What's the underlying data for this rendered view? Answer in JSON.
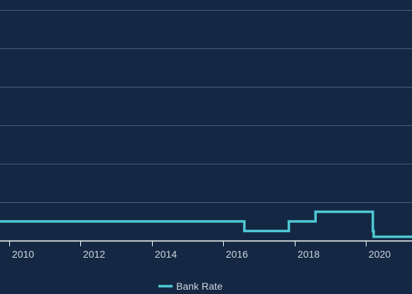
{
  "chart_data": {
    "type": "line",
    "x_axis": {
      "type": "date",
      "range": [
        "2009-10-01",
        "2021-04-15"
      ],
      "ticks": [
        "2010",
        "2012",
        "2014",
        "2016",
        "2018",
        "2020"
      ]
    },
    "y_axis": {
      "range": [
        0,
        6
      ],
      "gridlines": [
        1,
        2,
        3,
        4,
        5,
        6
      ],
      "tick_labels_visible": false
    },
    "grid": true,
    "legend_position": "bottom",
    "colors": {
      "background": "#142843",
      "gridline": "#4d5f78",
      "axis": "#ffffff",
      "series": "#4fc8d4",
      "text": "#cfd6e0"
    },
    "series": [
      {
        "name": "Bank Rate",
        "color": "#4fc8d4",
        "step": true,
        "points": [
          {
            "x": "2009-10-01",
            "y": 0.5
          },
          {
            "x": "2016-08-04",
            "y": 0.25
          },
          {
            "x": "2017-11-02",
            "y": 0.5
          },
          {
            "x": "2018-08-02",
            "y": 0.75
          },
          {
            "x": "2020-03-11",
            "y": 0.25
          },
          {
            "x": "2020-03-19",
            "y": 0.1
          },
          {
            "x": "2021-04-15",
            "y": 0.1
          }
        ]
      }
    ]
  }
}
